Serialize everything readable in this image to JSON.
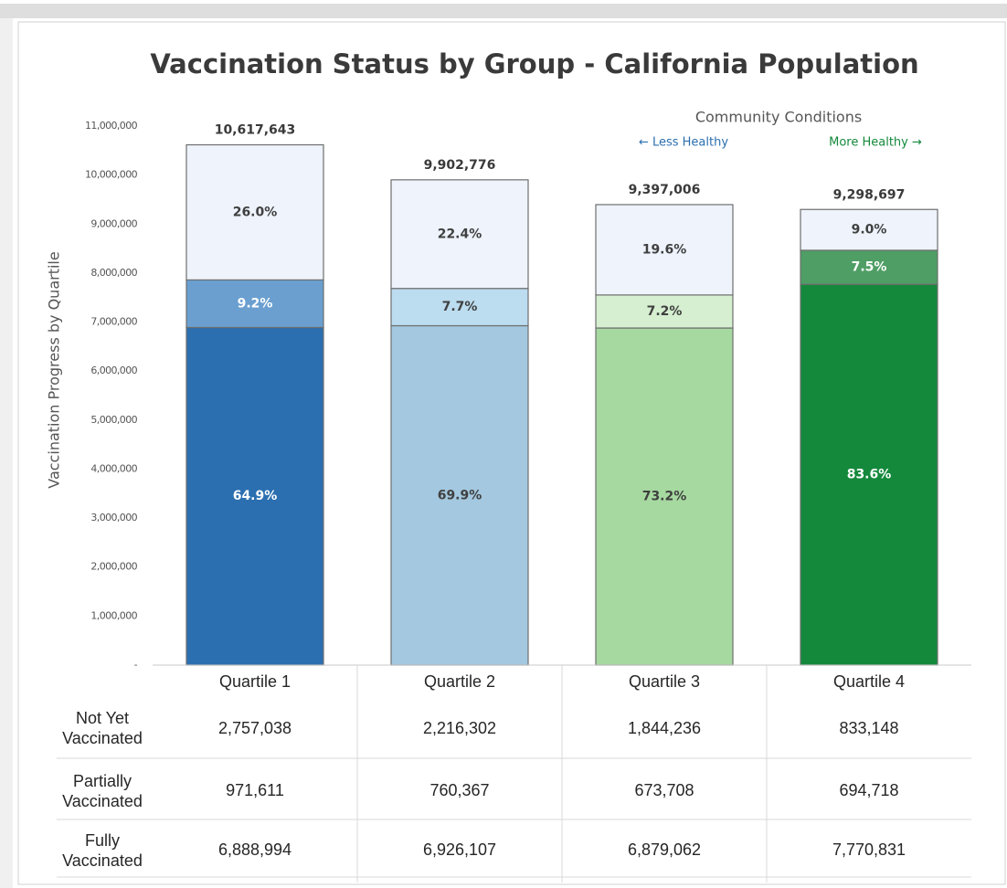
{
  "chart_data": {
    "type": "stacked_bar",
    "title": "Vaccination Status by Group - California Population",
    "y_label": "Vaccination Progress by Quartile",
    "annotations": {
      "heading": "Community Conditions",
      "left": "← Less Healthy",
      "right": "More Healthy →"
    },
    "categories": [
      "Quartile 1",
      "Quartile 2",
      "Quartile 3",
      "Quartile 4"
    ],
    "ylim": [
      0,
      11000000
    ],
    "yticks": [
      {
        "value": 0,
        "label": "-"
      },
      {
        "value": 1000000,
        "label": "1,000,000"
      },
      {
        "value": 2000000,
        "label": "2,000,000"
      },
      {
        "value": 3000000,
        "label": "3,000,000"
      },
      {
        "value": 4000000,
        "label": "4,000,000"
      },
      {
        "value": 5000000,
        "label": "5,000,000"
      },
      {
        "value": 6000000,
        "label": "6,000,000"
      },
      {
        "value": 7000000,
        "label": "7,000,000"
      },
      {
        "value": 8000000,
        "label": "8,000,000"
      },
      {
        "value": 9000000,
        "label": "9,000,000"
      },
      {
        "value": 10000000,
        "label": "10,000,000"
      },
      {
        "value": 11000000,
        "label": "11,000,000"
      }
    ],
    "totals": [
      10617643,
      9902776,
      9397006,
      9298697
    ],
    "total_labels": [
      "10,617,643",
      "9,902,776",
      "9,397,006",
      "9,298,697"
    ],
    "series": [
      {
        "name": "Not Yet Vaccinated",
        "values": [
          2757038,
          2216302,
          1844236,
          833148
        ],
        "value_labels": [
          "2,757,038",
          "2,216,302",
          "1,844,236",
          "833,148"
        ],
        "percent_labels": [
          "26.0%",
          "22.4%",
          "19.6%",
          "9.0%"
        ],
        "colors": [
          "#eef3fc",
          "#eef3fc",
          "#eef3fc",
          "#eef3fc"
        ],
        "label_colors": [
          "#404040",
          "#404040",
          "#404040",
          "#404040"
        ]
      },
      {
        "name": "Partially Vaccinated",
        "values": [
          971611,
          760367,
          673708,
          694718
        ],
        "value_labels": [
          "971,611",
          "760,367",
          "673,708",
          "694,718"
        ],
        "percent_labels": [
          "9.2%",
          "7.7%",
          "7.2%",
          "7.5%"
        ],
        "colors": [
          "#6a9fd0",
          "#bcdcef",
          "#d5efd0",
          "#4f9e65"
        ],
        "label_colors": [
          "#ffffff",
          "#404040",
          "#404040",
          "#ffffff"
        ]
      },
      {
        "name": "Fully Vaccinated",
        "values": [
          6888994,
          6926107,
          6879062,
          7770831
        ],
        "value_labels": [
          "6,888,994",
          "6,926,107",
          "6,879,062",
          "7,770,831"
        ],
        "percent_labels": [
          "64.9%",
          "69.9%",
          "73.2%",
          "83.6%"
        ],
        "colors": [
          "#2b6fb0",
          "#a3c8e0",
          "#a6d9a0",
          "#14893c"
        ],
        "label_colors": [
          "#ffffff",
          "#404040",
          "#404040",
          "#ffffff"
        ]
      }
    ]
  }
}
